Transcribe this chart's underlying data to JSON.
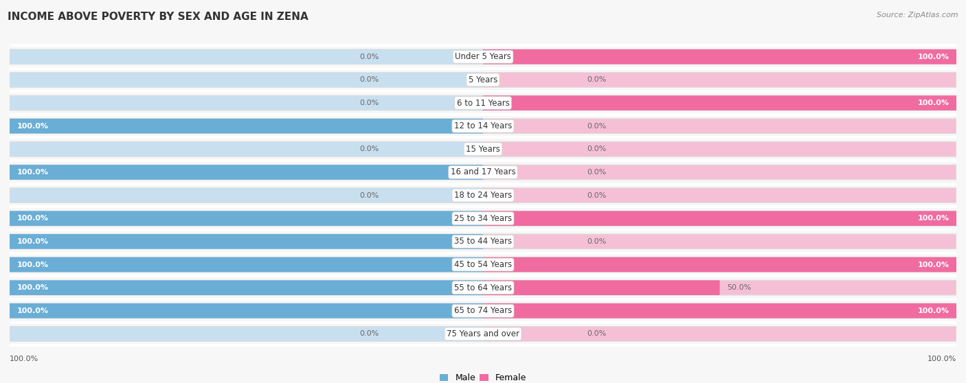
{
  "title": "INCOME ABOVE POVERTY BY SEX AND AGE IN ZENA",
  "source": "Source: ZipAtlas.com",
  "categories": [
    "Under 5 Years",
    "5 Years",
    "6 to 11 Years",
    "12 to 14 Years",
    "15 Years",
    "16 and 17 Years",
    "18 to 24 Years",
    "25 to 34 Years",
    "35 to 44 Years",
    "45 to 54 Years",
    "55 to 64 Years",
    "65 to 74 Years",
    "75 Years and over"
  ],
  "male_values": [
    0.0,
    0.0,
    0.0,
    100.0,
    0.0,
    100.0,
    0.0,
    100.0,
    100.0,
    100.0,
    100.0,
    100.0,
    0.0
  ],
  "female_values": [
    100.0,
    0.0,
    100.0,
    0.0,
    0.0,
    0.0,
    0.0,
    100.0,
    0.0,
    100.0,
    50.0,
    100.0,
    0.0
  ],
  "male_color": "#6aaed6",
  "male_bg_color": "#c8dff0",
  "female_color": "#f06ba0",
  "female_bg_color": "#f5c0d5",
  "row_bg_color": "#efefef",
  "fig_bg_color": "#f7f7f7",
  "white_color": "#ffffff",
  "title_fontsize": 11,
  "source_fontsize": 8,
  "cat_fontsize": 8.5,
  "val_fontsize": 8,
  "bar_height": 0.62,
  "row_sep": 0.06
}
